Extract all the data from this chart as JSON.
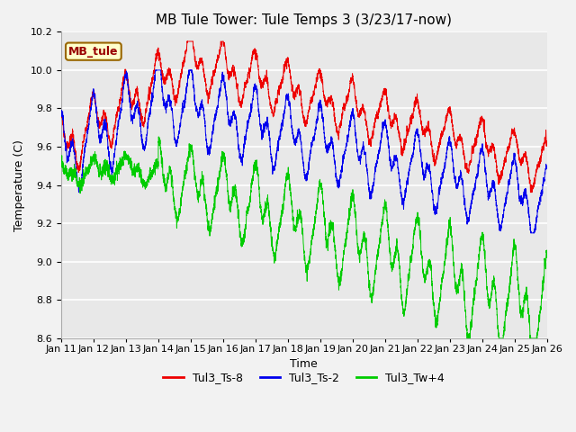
{
  "title": "MB Tule Tower: Tule Temps 3 (3/23/17-now)",
  "xlabel": "Time",
  "ylabel": "Temperature (C)",
  "ylim": [
    8.6,
    10.2
  ],
  "yticks": [
    8.6,
    8.8,
    9.0,
    9.2,
    9.4,
    9.6,
    9.8,
    10.0,
    10.2
  ],
  "xtick_labels": [
    "Jan 11",
    "Jan 12",
    "Jan 13",
    "Jan 14",
    "Jan 15",
    "Jan 16",
    "Jan 17",
    "Jan 18",
    "Jan 19",
    "Jan 20",
    "Jan 21",
    "Jan 22",
    "Jan 23",
    "Jan 24",
    "Jan 25",
    "Jan 26"
  ],
  "color_red": "#EE0000",
  "color_blue": "#0000EE",
  "color_green": "#00CC00",
  "legend_entries": [
    "Tul3_Ts-8",
    "Tul3_Ts-2",
    "Tul3_Tw+4"
  ],
  "inset_label": "MB_tule",
  "inset_bg": "#FFFFCC",
  "inset_border": "#996600",
  "background_color": "#E8E8E8",
  "grid_color": "#FFFFFF",
  "title_fontsize": 11,
  "axis_fontsize": 9,
  "tick_fontsize": 8,
  "legend_fontsize": 9
}
